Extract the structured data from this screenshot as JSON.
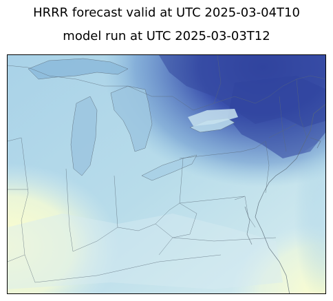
{
  "title": {
    "line1": "HRRR forecast valid at UTC 2025-03-04T10",
    "line2": "model run at UTC 2025-03-03T12"
  },
  "map": {
    "colormap": [
      "#ffffcc",
      "#e6f4ee",
      "#bfe0ec",
      "#94c4e0",
      "#6da7d3",
      "#4d85c6",
      "#3a5eb5",
      "#2c3e9e"
    ],
    "boundary_color": "#5a6a78"
  }
}
